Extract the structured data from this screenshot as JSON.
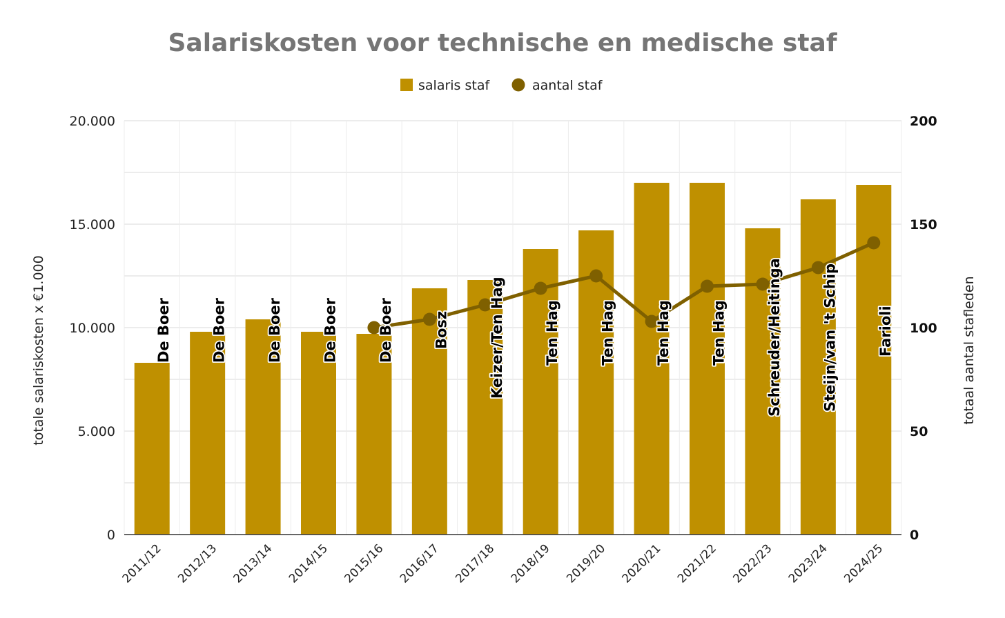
{
  "colors": {
    "bar": "#BF9000",
    "line": "#7F6000",
    "grid": "#d9d9d9",
    "title": "#757575"
  },
  "chart_data": {
    "type": "bar",
    "title": "Salariskosten voor technische en medische staf",
    "ylabel": "totale salariskosten x €1.000",
    "ylabel_right": "totaal aantal stafleden",
    "ylim": [
      0,
      20000
    ],
    "ylim_right": [
      0,
      200
    ],
    "yticks": [
      "0",
      "5.000",
      "10.000",
      "15.000",
      "20.000"
    ],
    "yticks_right": [
      "0",
      "50",
      "100",
      "150",
      "200"
    ],
    "legend_position": "top-center",
    "grid": true,
    "categories": [
      "2011/12",
      "2012/13",
      "2013/14",
      "2014/15",
      "2015/16",
      "2016/17",
      "2017/18",
      "2018/19",
      "2019/20",
      "2020/21",
      "2021/22",
      "2022/23",
      "2023/24",
      "2024/25"
    ],
    "series": [
      {
        "name": "salaris staf",
        "type": "bar",
        "axis": "left",
        "values": [
          8300,
          9800,
          10400,
          9800,
          9700,
          11900,
          12300,
          13800,
          14700,
          17000,
          17000,
          14800,
          16200,
          16900
        ]
      },
      {
        "name": "aantal staf",
        "type": "line",
        "axis": "right",
        "values": [
          null,
          null,
          null,
          null,
          100,
          104,
          111,
          119,
          125,
          103,
          120,
          121,
          129,
          141
        ]
      }
    ],
    "annotations": [
      "De Boer",
      "De Boer",
      "De Boer",
      "De Boer",
      "De Boer",
      "Bosz",
      "Keizer/Ten Hag",
      "Ten Hag",
      "Ten Hag",
      "Ten Hag",
      "Ten Hag",
      "Schreuder/Heitinga",
      "Steijn/van 't Schip",
      "Farioli"
    ]
  }
}
